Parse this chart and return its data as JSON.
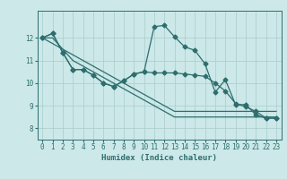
{
  "xlabel": "Humidex (Indice chaleur)",
  "bg_color": "#cce8e8",
  "grid_color": "#aacccc",
  "line_color": "#2e6e6e",
  "xlim": [
    -0.5,
    23.5
  ],
  "ylim": [
    7.5,
    13.2
  ],
  "yticks": [
    8,
    9,
    10,
    11,
    12
  ],
  "xticks": [
    0,
    1,
    2,
    3,
    4,
    5,
    6,
    7,
    8,
    9,
    10,
    11,
    12,
    13,
    14,
    15,
    16,
    17,
    18,
    19,
    20,
    21,
    22,
    23
  ],
  "series": [
    [
      12.0,
      12.2,
      11.35,
      10.6,
      10.6,
      10.35,
      10.0,
      9.85,
      10.1,
      10.4,
      10.5,
      12.5,
      12.55,
      12.05,
      11.6,
      11.45,
      10.85,
      9.6,
      10.15,
      9.05,
      9.05,
      8.6,
      8.45,
      8.45
    ],
    [
      12.0,
      12.2,
      11.35,
      10.6,
      10.6,
      10.35,
      10.0,
      9.85,
      10.1,
      10.4,
      10.5,
      10.45,
      10.45,
      10.45,
      10.4,
      10.35,
      10.3,
      10.0,
      9.65,
      9.1,
      8.95,
      8.75,
      8.45,
      8.45
    ],
    [
      12.0,
      11.75,
      11.5,
      11.25,
      11.0,
      10.75,
      10.5,
      10.25,
      10.0,
      9.75,
      9.5,
      9.25,
      9.0,
      8.75,
      8.75,
      8.75,
      8.75,
      8.75,
      8.75,
      8.75,
      8.75,
      8.75,
      8.75,
      8.75
    ],
    [
      12.0,
      12.0,
      11.5,
      11.0,
      10.75,
      10.5,
      10.25,
      10.0,
      9.75,
      9.5,
      9.25,
      9.0,
      8.75,
      8.5,
      8.5,
      8.5,
      8.5,
      8.5,
      8.5,
      8.5,
      8.5,
      8.5,
      8.5,
      8.5
    ]
  ],
  "markers": [
    "D",
    "D",
    null,
    null
  ],
  "marker_size": 2.5,
  "linewidth": 0.9,
  "tick_fontsize": 5.5,
  "xlabel_fontsize": 6.5
}
